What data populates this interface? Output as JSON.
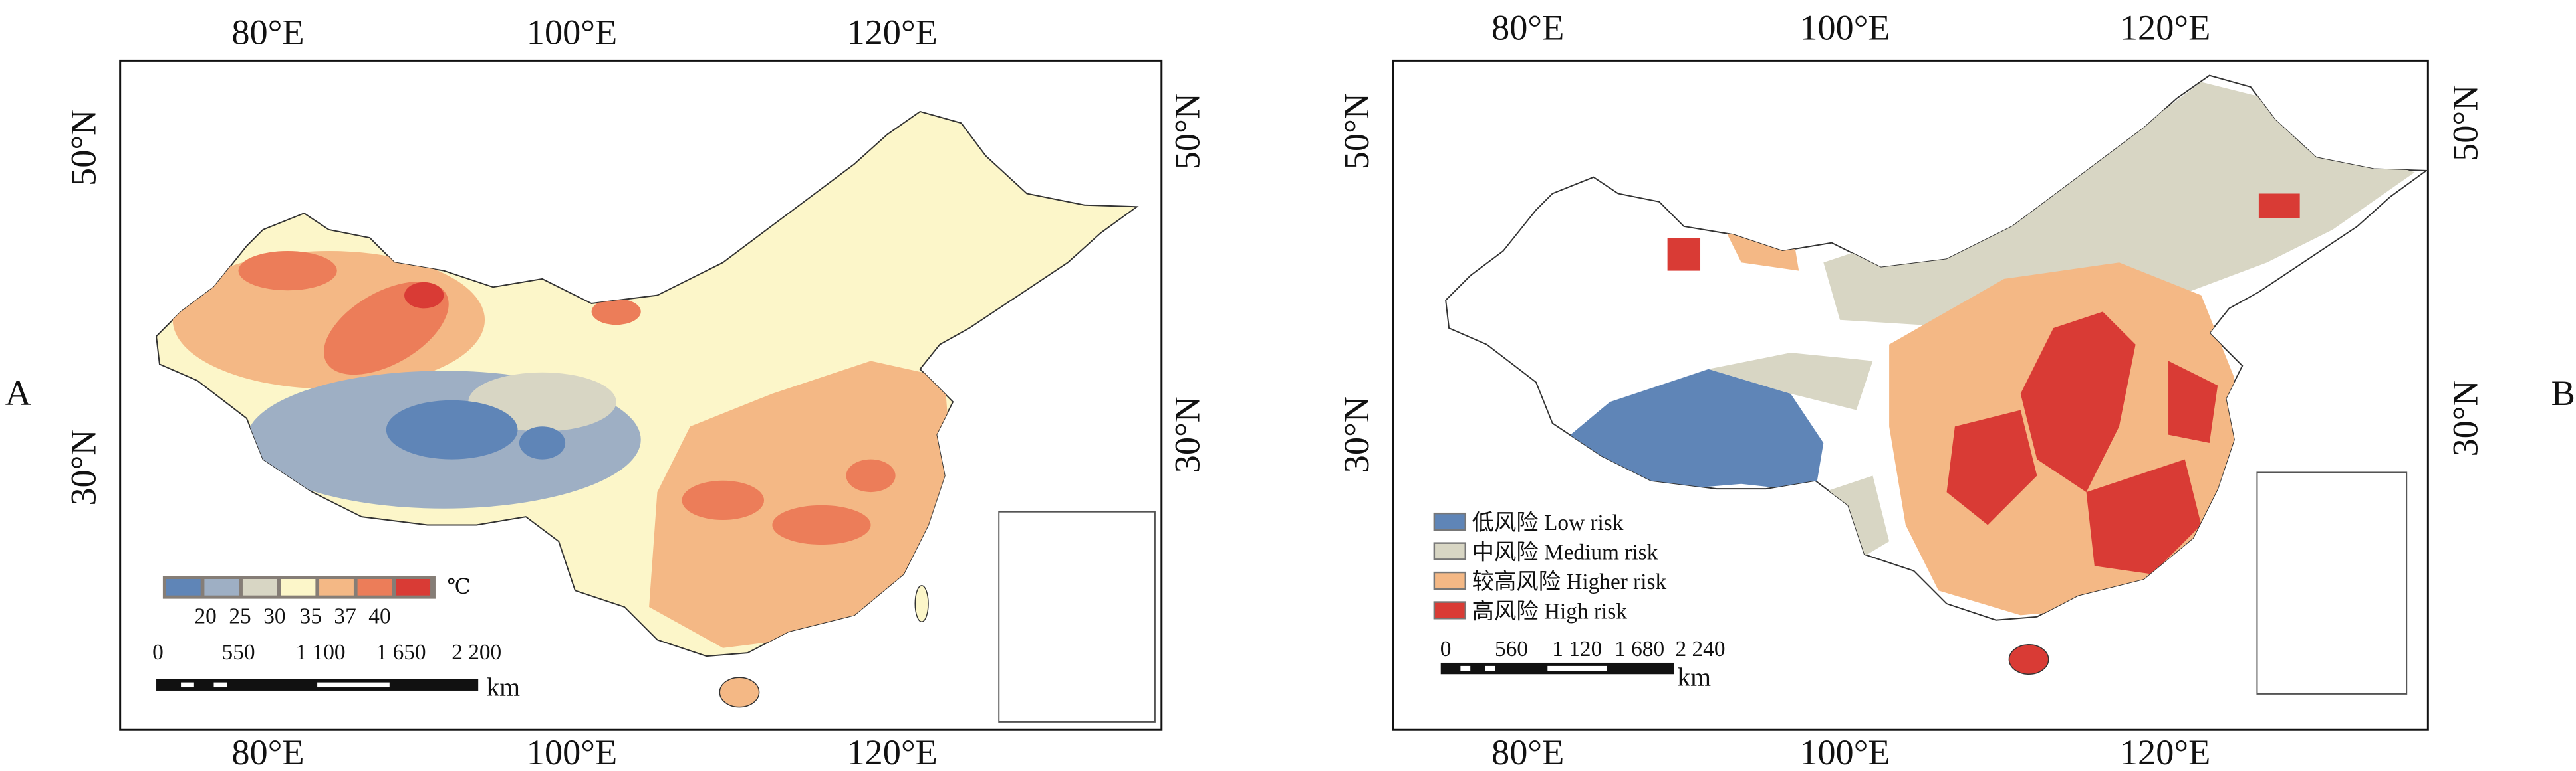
{
  "panel_a": {
    "label": "A",
    "lon_labels": [
      "80°E",
      "100°E",
      "120°E"
    ],
    "lat_labels": [
      "50°N",
      "30°N"
    ],
    "legend": {
      "unit": "℃",
      "breaks": [
        "20",
        "25",
        "30",
        "35",
        "37",
        "40"
      ],
      "colors": [
        "#5f85b7",
        "#9eafc4",
        "#d8d6c4",
        "#fcf6c9",
        "#f4b885",
        "#ec7d59",
        "#d93b35"
      ]
    },
    "scale_bar": {
      "ticks": [
        "0",
        "550",
        "1 100",
        "1 650",
        "2 200"
      ],
      "unit": "km"
    }
  },
  "panel_b": {
    "label": "B",
    "lon_labels": [
      "80°E",
      "100°E",
      "120°E"
    ],
    "lat_labels": [
      "50°N",
      "30°N"
    ],
    "legend": [
      {
        "label": "低风险 Low risk",
        "color": "#5f85b7"
      },
      {
        "label": "中风险 Medium risk",
        "color": "#d8d6c4"
      },
      {
        "label": "较高风险 Higher risk",
        "color": "#f4b885"
      },
      {
        "label": "高风险 High risk",
        "color": "#d93b35"
      }
    ],
    "scale_bar": {
      "ticks": [
        "0",
        "560",
        "1 120",
        "1 680",
        "2 240"
      ],
      "unit": "km"
    }
  }
}
